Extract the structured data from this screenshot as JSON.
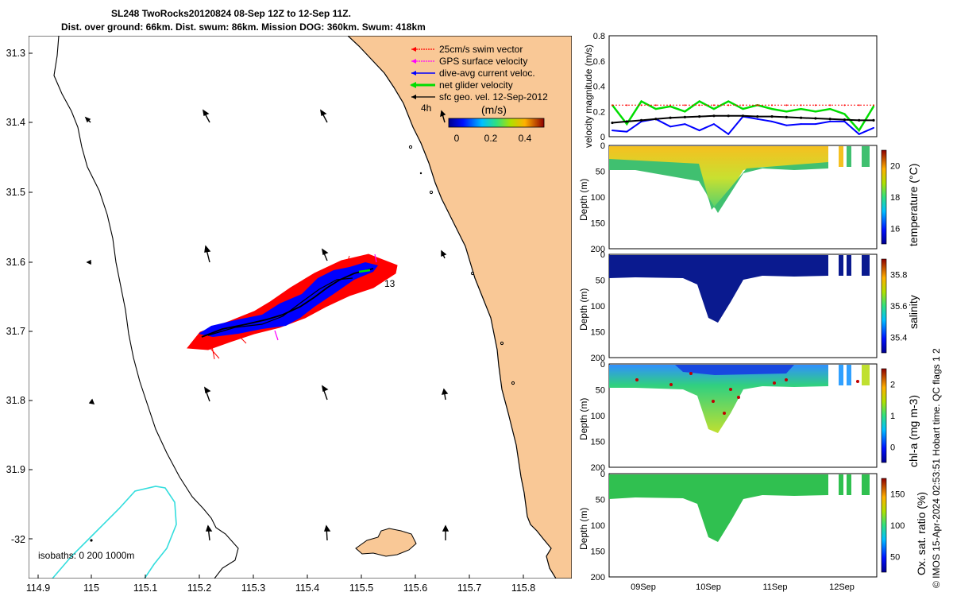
{
  "title": {
    "line1": "SL248 TwoRocks20120824 08-Sep 12Z to 12-Sep 11Z.",
    "line2": "Dist. over ground: 66km. Dist. swum: 86km. Mission DOG: 360km. Swum: 418km"
  },
  "map": {
    "lat_ticks": [
      "31.3",
      "31.4",
      "31.5",
      "31.6",
      "31.7",
      "31.8",
      "31.9",
      "-32"
    ],
    "lon_ticks": [
      "114.9",
      "115",
      "115.1",
      "115.2",
      "115.3",
      "115.4",
      "115.5",
      "115.6",
      "115.7",
      "115.8"
    ],
    "legend": [
      {
        "label": "25cm/s swim vector",
        "color": "#ff0000"
      },
      {
        "label": "GPS surface velocity",
        "color": "#ff00ff"
      },
      {
        "label": "dive-avg current veloc.",
        "color": "#0000ff"
      },
      {
        "label": "net glider velocity",
        "color": "#00dd00"
      },
      {
        "label": "sfc geo. vel. 12-Sep-2012",
        "color": "#000000"
      }
    ],
    "legend_4h": "4h",
    "colorbar_label": "(m/s)",
    "colorbar_ticks": [
      "0",
      "0.2",
      "0.4"
    ],
    "point_label": "13",
    "isobaths_label": "isobaths: 0   200  1000m",
    "colors": {
      "land": "#f9c896",
      "ocean": "#ffffff",
      "isobath": "#33dddd",
      "track": "#0000ff",
      "swim": "#ff0000"
    }
  },
  "chart_data": [
    {
      "type": "line",
      "title": "",
      "ylabel": "velocity magnitude (m/s)",
      "ylim": [
        0,
        0.8
      ],
      "yticks": [
        "0",
        "0.2",
        "0.4",
        "0.6",
        "0.8"
      ],
      "x": [
        0,
        0.25,
        0.5,
        0.75,
        1,
        1.25,
        1.5,
        1.75,
        2,
        2.25,
        2.5,
        2.75,
        3,
        3.25,
        3.5,
        3.75,
        4,
        4.25,
        4.5
      ],
      "series": [
        {
          "name": "net glider velocity",
          "values": [
            0.25,
            0.1,
            0.28,
            0.22,
            0.24,
            0.2,
            0.28,
            0.22,
            0.28,
            0.22,
            0.25,
            0.22,
            0.2,
            0.22,
            0.2,
            0.22,
            0.18,
            0.05,
            0.24
          ]
        },
        {
          "name": "dive-avg current veloc.",
          "values": [
            0.05,
            0.04,
            0.12,
            0.14,
            0.08,
            0.1,
            0.05,
            0.1,
            0.02,
            0.16,
            0.14,
            0.12,
            0.09,
            0.1,
            0.1,
            0.12,
            0.12,
            0.02,
            0.07
          ]
        },
        {
          "name": "sfc geo. vel.",
          "values": [
            0.11,
            0.12,
            0.13,
            0.14,
            0.15,
            0.155,
            0.16,
            0.165,
            0.165,
            0.165,
            0.16,
            0.16,
            0.155,
            0.15,
            0.145,
            0.14,
            0.135,
            0.13,
            0.13
          ]
        },
        {
          "name": "25cm/s swim vector",
          "values": [
            0.25,
            0.25,
            0.25,
            0.25,
            0.25,
            0.25,
            0.25,
            0.25,
            0.25,
            0.25,
            0.25,
            0.25,
            0.25,
            0.25,
            0.25,
            0.25,
            0.25,
            0.25,
            0.25
          ]
        }
      ]
    },
    {
      "type": "heatmap",
      "ylabel": "Depth (m)",
      "cbar_label": "temperature (°C)",
      "cbar_ticks": [
        "16",
        "18",
        "20"
      ],
      "ylim": [
        200,
        0
      ],
      "yticks": [
        "0",
        "50",
        "100",
        "150",
        "200"
      ]
    },
    {
      "type": "heatmap",
      "ylabel": "Depth (m)",
      "cbar_label": "salinity",
      "cbar_ticks": [
        "35.4",
        "35.6",
        "35.8"
      ],
      "ylim": [
        200,
        0
      ],
      "yticks": [
        "0",
        "50",
        "100",
        "150",
        "200"
      ]
    },
    {
      "type": "heatmap",
      "ylabel": "Depth (m)",
      "cbar_label": "chl-a (mg m-3)",
      "cbar_ticks": [
        "0",
        "1",
        "2"
      ],
      "ylim": [
        200,
        0
      ],
      "yticks": [
        "0",
        "50",
        "100",
        "150",
        "200"
      ]
    },
    {
      "type": "heatmap",
      "ylabel": "Depth (m)",
      "cbar_label": "Ox. sat. ratio (%)",
      "cbar_ticks": [
        "50",
        "100",
        "150"
      ],
      "ylim": [
        200,
        0
      ],
      "yticks": [
        "0",
        "50",
        "100",
        "150",
        "200"
      ],
      "xticks": [
        "09Sep",
        "10Sep",
        "11Sep",
        "12Sep"
      ]
    }
  ],
  "footer": "© IMOS 15-Apr-2024 02:53:51 Hobart time. QC flags 1  2"
}
